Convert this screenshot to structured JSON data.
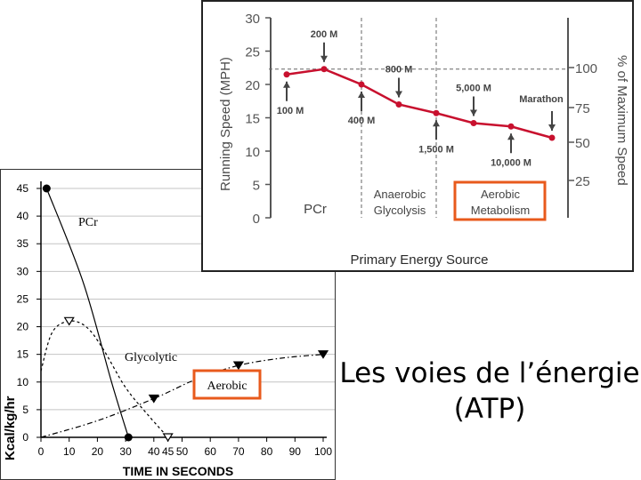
{
  "chart_data": [
    {
      "type": "line",
      "ylabel": "Kcal/kg/hr",
      "xlabel": "TIME IN SECONDS",
      "xlim": [
        0,
        100
      ],
      "ylim": [
        0,
        45
      ],
      "x_ticks": [
        0,
        10,
        20,
        30,
        40,
        45,
        50,
        60,
        70,
        80,
        90,
        100
      ],
      "y_ticks": [
        0,
        5,
        10,
        15,
        20,
        25,
        30,
        35,
        40,
        45
      ],
      "series": [
        {
          "name": "PCr",
          "line_style": "solid",
          "marker": "circle",
          "points": [
            [
              2,
              45
            ],
            [
              15,
              28
            ],
            [
              25,
              10
            ],
            [
              31,
              0
            ]
          ],
          "marked": [
            [
              2,
              45
            ],
            [
              31,
              0
            ]
          ]
        },
        {
          "name": "Glycolytic",
          "line_style": "dashed",
          "marker": "triangle-down-open",
          "points": [
            [
              0,
              12
            ],
            [
              4,
              19
            ],
            [
              10,
              21
            ],
            [
              16,
              20
            ],
            [
              22,
              16
            ],
            [
              30,
              9
            ],
            [
              38,
              4
            ],
            [
              45,
              0
            ]
          ],
          "marked": [
            [
              10,
              21
            ],
            [
              45,
              0
            ]
          ]
        },
        {
          "name": "Aerobic",
          "line_style": "dash-dot",
          "marker": "triangle-down",
          "points": [
            [
              0,
              0
            ],
            [
              20,
              3
            ],
            [
              40,
              7
            ],
            [
              55,
              10.5
            ],
            [
              70,
              13
            ],
            [
              85,
              14.3
            ],
            [
              100,
              15
            ]
          ],
          "marked": [
            [
              40,
              7
            ],
            [
              70,
              13
            ],
            [
              100,
              15
            ]
          ]
        }
      ],
      "highlight": "Aerobic"
    },
    {
      "type": "line",
      "ylabel": "Running Speed (MPH)",
      "ylabel_right": "% of Maximum Speed",
      "xlabel": "Primary Energy Source",
      "ylim": [
        0,
        30
      ],
      "y_ticks": [
        0,
        5,
        10,
        15,
        20,
        25,
        30
      ],
      "y2_ticks": [
        25,
        50,
        75,
        100
      ],
      "categories": [
        "100 M",
        "200 M",
        "400 M",
        "800 M",
        "1,500 M",
        "5,000 M",
        "10,000 M",
        "Marathon"
      ],
      "series": [
        {
          "name": "Running Speed",
          "values": [
            21.5,
            22.3,
            20,
            17,
            15.7,
            14.2,
            13.7,
            12
          ]
        }
      ],
      "reference_line": 22.3,
      "category_label_side": [
        "below",
        "above",
        "below",
        "above",
        "below",
        "above",
        "below",
        "above"
      ],
      "zones": [
        {
          "label_lines": [
            "PCr"
          ],
          "boxed": false
        },
        {
          "label_lines": [
            "Anaerobic",
            "Glycolysis"
          ],
          "boxed": false
        },
        {
          "label_lines": [
            "Aerobic",
            "Metabolism"
          ],
          "boxed": true
        }
      ],
      "highlight_color": "#e85a1c",
      "line_color": "#c8102e"
    }
  ],
  "caption": {
    "line1": "Les voies de l’énergie",
    "line2": "(ATP)"
  }
}
